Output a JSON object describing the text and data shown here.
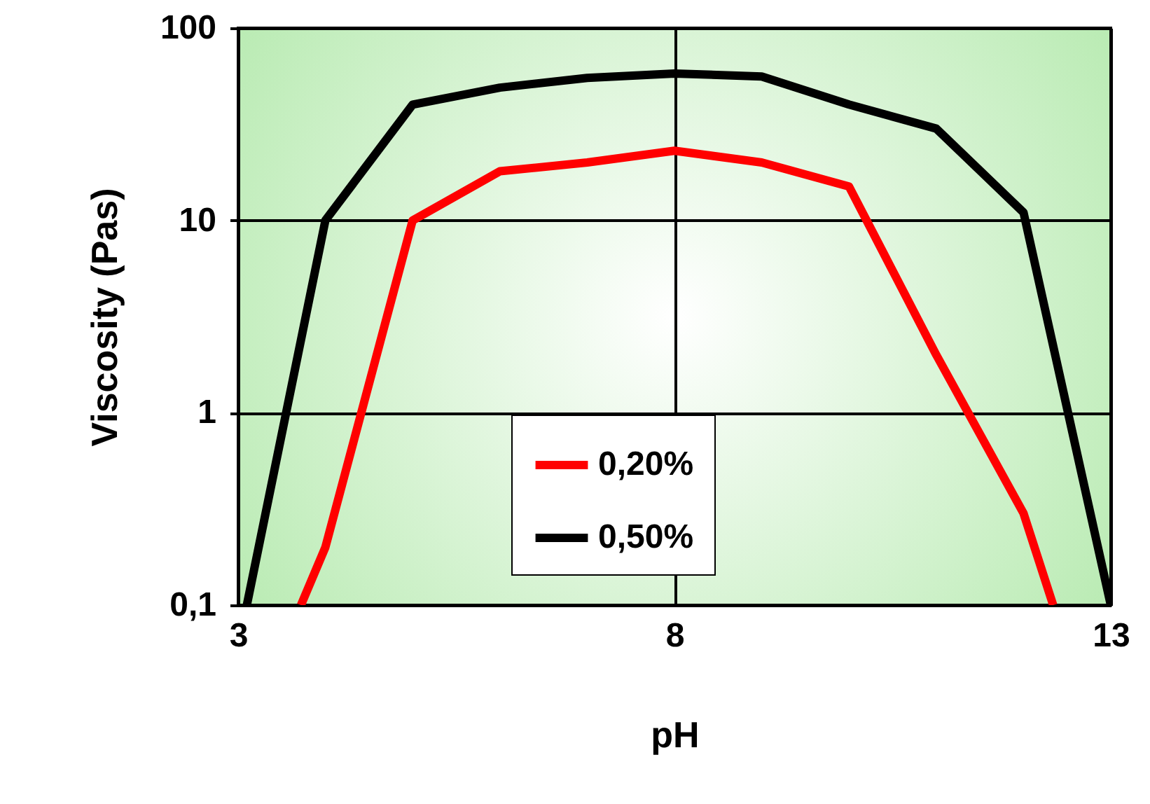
{
  "chart_data": {
    "type": "line",
    "xlabel": "pH",
    "ylabel": "Viscosity (Pas)",
    "log": "y",
    "grid": true,
    "legend": "bottom",
    "line_style": "solid",
    "marker": "none",
    "xlim": [
      3,
      13
    ],
    "xticks": [
      3,
      8,
      13
    ],
    "ylim": [
      0.1,
      100
    ],
    "yticks": [
      {
        "value": 0.1,
        "label": "0,1"
      },
      1,
      10,
      100
    ],
    "series": [
      {
        "name": "0,20%",
        "color": "#ff0000",
        "x": [
          3.72,
          4,
          5,
          6,
          7,
          8,
          9,
          10,
          11,
          12,
          12.34
        ],
        "values": [
          0.1,
          0.2,
          10,
          18,
          20,
          23,
          20,
          15,
          2,
          0.3,
          0.1
        ]
      },
      {
        "name": "0,50%",
        "color": "#000000",
        "x": [
          3.1,
          4,
          5,
          6,
          7,
          8,
          9,
          10,
          11,
          12,
          13
        ],
        "values": [
          0.1,
          10,
          40,
          49,
          55,
          58,
          56,
          40,
          30,
          11,
          0.1
        ]
      }
    ]
  }
}
